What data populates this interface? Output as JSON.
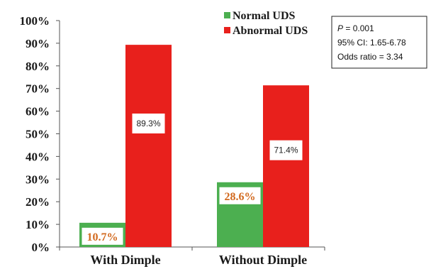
{
  "chart_data": {
    "type": "bar",
    "categories": [
      "With Dimple",
      "Without Dimple"
    ],
    "series": [
      {
        "name": "Normal UDS",
        "values": [
          10.7,
          28.6
        ],
        "labels": [
          "10.7%",
          "28.6%"
        ],
        "color": "#4caf50",
        "label_color": "#d2691e"
      },
      {
        "name": "Abnormal UDS",
        "values": [
          89.3,
          71.4
        ],
        "labels": [
          "89.3%",
          "71.4%"
        ],
        "color": "#e8201c",
        "label_color": "#222222"
      }
    ],
    "ylim": [
      0,
      100
    ],
    "yticks": [
      "0%",
      "10%",
      "20%",
      "30%",
      "40%",
      "50%",
      "60%",
      "70%",
      "80%",
      "90%",
      "100%"
    ],
    "legend_position": "top-center",
    "grid": false
  },
  "stats_box": {
    "p_symbol": "P",
    "p_rest": " = 0.001",
    "ci": "95% CI: 1.65-6.78",
    "odds": "Odds ratio = 3.34"
  }
}
